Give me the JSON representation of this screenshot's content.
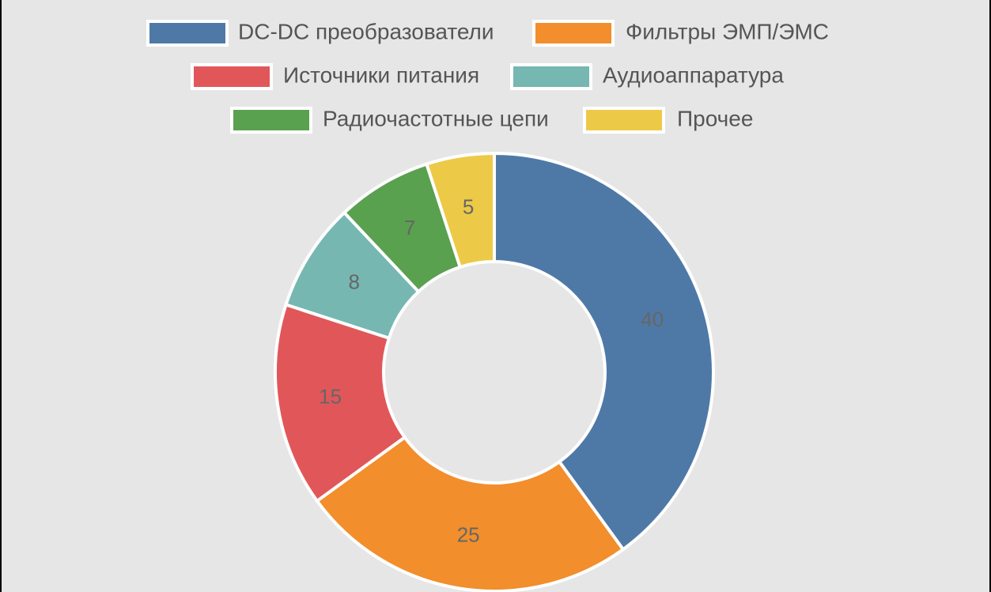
{
  "chart_data": {
    "type": "pie",
    "variant": "donut",
    "title": "",
    "legend": {
      "placement": "top",
      "entries": [
        "DC-DC преобразователи",
        "Фильтры ЭМП/ЭМС",
        "Источники питания",
        "Аудиоаппаратура",
        "Радиочастотные цепи",
        "Прочее"
      ]
    },
    "categories": [
      "DC-DC преобразователи",
      "Фильтры ЭМП/ЭМС",
      "Источники питания",
      "Аудиоаппаратура",
      "Радиочастотные цепи",
      "Прочее"
    ],
    "values": [
      40,
      25,
      15,
      8,
      7,
      5
    ],
    "colors": [
      "#4e79a7",
      "#f28e2b",
      "#e15759",
      "#76b7b2",
      "#59a14f",
      "#edc948"
    ],
    "data_labels": [
      "40",
      "25",
      "15",
      "8",
      "7",
      "5"
    ],
    "slice_border_color": "#ffffff",
    "background_color": "#e6e6e6"
  }
}
